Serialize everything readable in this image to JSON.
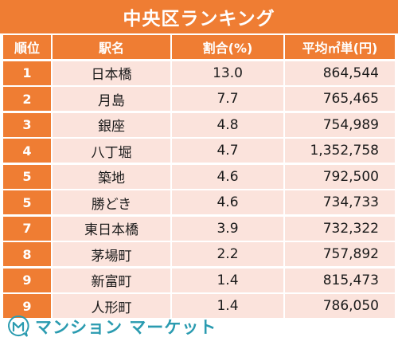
{
  "title": "中央区ランキング",
  "headers": {
    "rank": "順位",
    "name": "駅名",
    "pct": "割合(%)",
    "price": "平均㎡単(円)"
  },
  "rows": [
    {
      "rank": "1",
      "name": "日本橋",
      "pct": "13.0",
      "price": "864,544"
    },
    {
      "rank": "2",
      "name": "月島",
      "pct": "7.7",
      "price": "765,465"
    },
    {
      "rank": "3",
      "name": "銀座",
      "pct": "4.8",
      "price": "754,989"
    },
    {
      "rank": "4",
      "name": "八丁堀",
      "pct": "4.7",
      "price": "1,352,758"
    },
    {
      "rank": "5",
      "name": "築地",
      "pct": "4.6",
      "price": "792,500"
    },
    {
      "rank": "5",
      "name": "勝どき",
      "pct": "4.6",
      "price": "734,733"
    },
    {
      "rank": "7",
      "name": "東日本橋",
      "pct": "3.9",
      "price": "732,322"
    },
    {
      "rank": "8",
      "name": "茅場町",
      "pct": "2.2",
      "price": "757,892"
    },
    {
      "rank": "9",
      "name": "新富町",
      "pct": "1.4",
      "price": "815,473"
    },
    {
      "rank": "9",
      "name": "人形町",
      "pct": "1.4",
      "price": "786,050"
    }
  ],
  "footer": {
    "logo_text": "マンション マーケット",
    "logo_icon": "m-bubble-icon",
    "brand_color": "#2a9bb0"
  },
  "colors": {
    "accent": "#ef7d33",
    "row_bg": "#fbe3dc"
  }
}
